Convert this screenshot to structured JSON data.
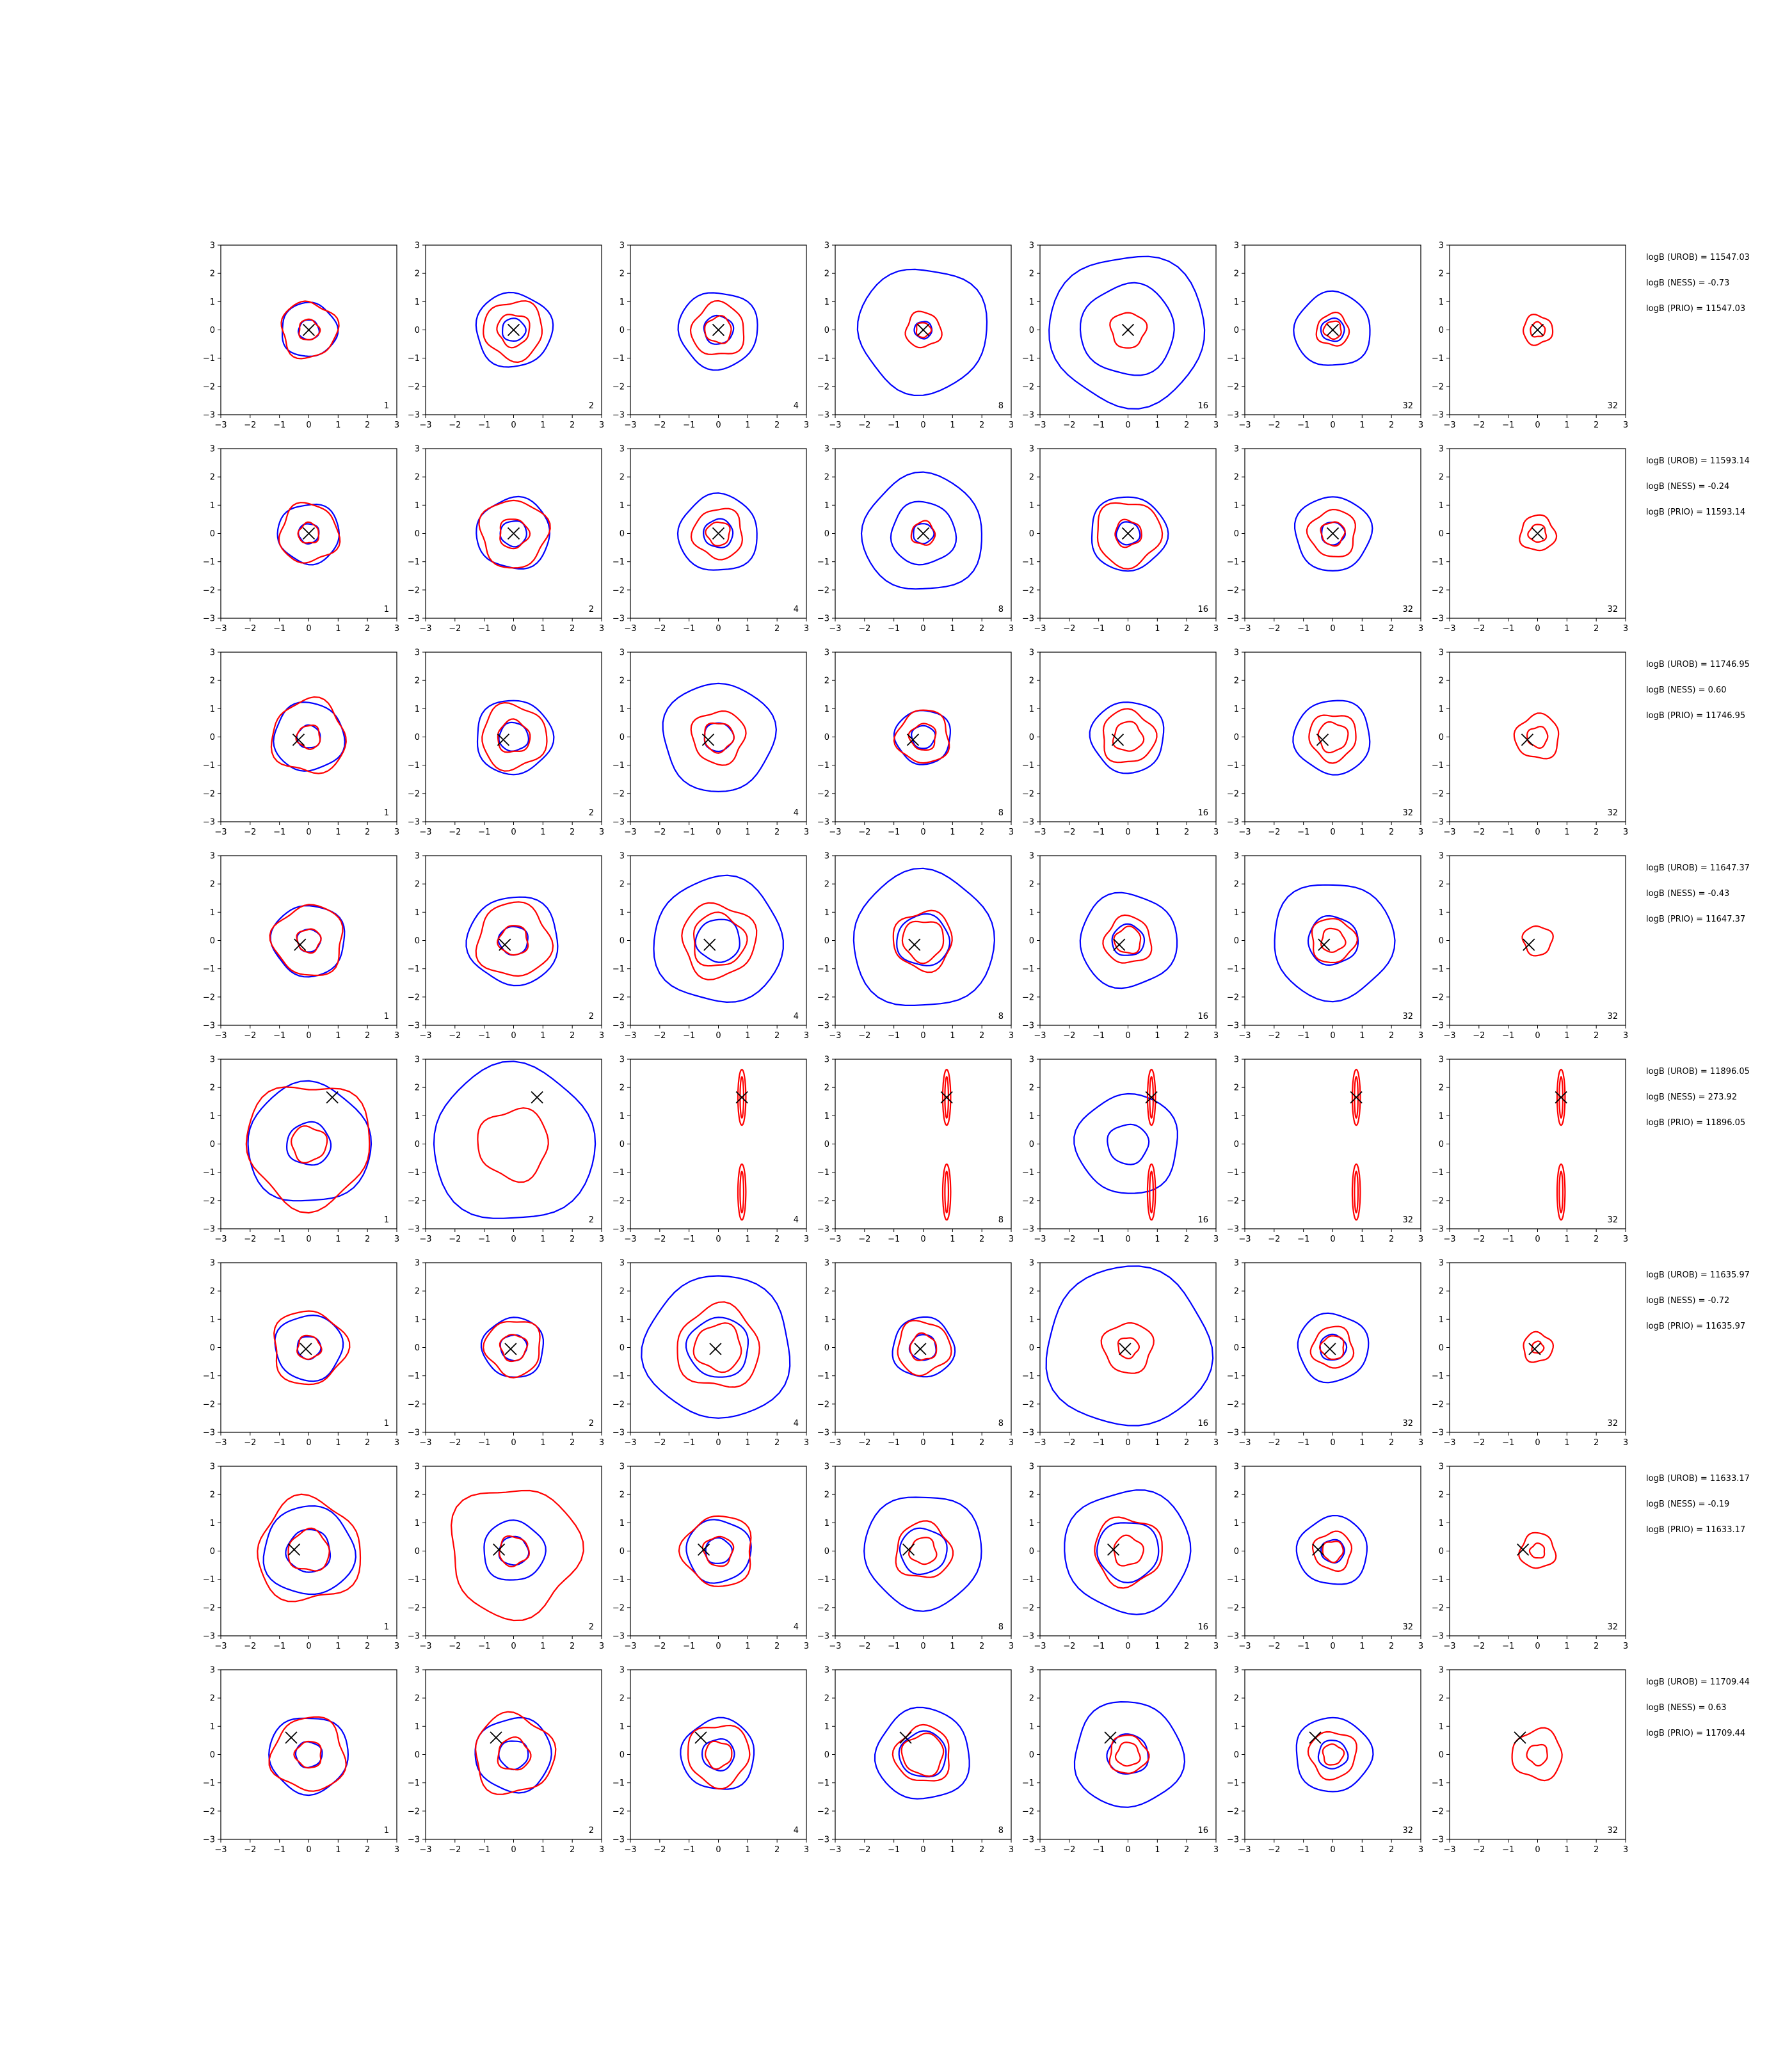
{
  "figure": {
    "axes_range": [
      -3,
      3
    ],
    "ticks": [
      "−3",
      "−2",
      "−1",
      "0",
      "1",
      "2",
      "3"
    ],
    "colors": {
      "blue": "#0000ff",
      "red": "#ff0000",
      "marker": "#000000"
    }
  },
  "chart_data": [
    {
      "type": "contour",
      "row": 1,
      "k_labels": [
        "1",
        "2",
        "4",
        "8",
        "16",
        "32",
        "32"
      ],
      "marker": [
        0,
        0
      ],
      "stats": [
        "logB (UROB) = 11547.03",
        "logB (NESS) = -0.73",
        "logB (PRIO) = 11547.03"
      ],
      "blue_radii": [
        [
          0.35,
          0.95
        ],
        [
          0.4,
          1.3
        ],
        [
          0.5,
          1.35
        ],
        [
          2.2,
          0.3
        ],
        [
          2.65,
          1.6
        ],
        [
          0.4,
          1.3
        ],
        []
      ],
      "red_radii": [
        [
          0.35,
          0.95
        ],
        [
          0.55,
          1.0
        ],
        [
          0.45,
          0.9
        ],
        [
          0.6,
          0.25
        ],
        [
          0.6
        ],
        [
          0.3,
          0.55
        ],
        [
          0.25,
          0.5
        ]
      ]
    },
    {
      "type": "contour",
      "row": 2,
      "k_labels": [
        "1",
        "2",
        "4",
        "8",
        "16",
        "32",
        "32"
      ],
      "marker": [
        0,
        0
      ],
      "stats": [
        "logB (UROB) = 11593.14",
        "logB (NESS) = -0.24",
        "logB (PRIO) = 11593.14"
      ],
      "blue_radii": [
        [
          0.35,
          1.05
        ],
        [
          0.45,
          1.25
        ],
        [
          0.5,
          1.35
        ],
        [
          2.05,
          1.1,
          0.35
        ],
        [
          0.4,
          1.3
        ],
        [
          0.4,
          1.3
        ],
        []
      ],
      "red_radii": [
        [
          0.35,
          1.0
        ],
        [
          0.5,
          1.15
        ],
        [
          0.4,
          0.85
        ],
        [
          0.4
        ],
        [
          0.45,
          1.1
        ],
        [
          0.4,
          0.8
        ],
        [
          0.3,
          0.6
        ]
      ]
    },
    {
      "type": "contour",
      "row": 3,
      "k_labels": [
        "1",
        "2",
        "4",
        "8",
        "16",
        "32",
        "32"
      ],
      "marker": [
        -0.35,
        -0.1
      ],
      "stats": [
        "logB (UROB) = 11746.95",
        "logB (NESS) = 0.60",
        "logB (PRIO) = 11746.95"
      ],
      "blue_radii": [
        [
          0.4,
          1.2
        ],
        [
          0.5,
          1.3
        ],
        [
          0.5,
          1.9
        ],
        [
          0.4,
          0.95
        ],
        [
          1.25
        ],
        [
          1.3
        ],
        []
      ],
      "red_radii": [
        [
          0.4,
          1.25
        ],
        [
          0.55,
          1.1
        ],
        [
          0.5,
          0.9
        ],
        [
          0.45,
          0.9
        ],
        [
          0.5,
          0.9
        ],
        [
          0.5,
          0.8
        ],
        [
          0.35,
          0.75
        ]
      ]
    },
    {
      "type": "contour",
      "row": 4,
      "k_labels": [
        "1",
        "2",
        "4",
        "8",
        "16",
        "32",
        "32"
      ],
      "marker": [
        -0.3,
        -0.15
      ],
      "stats": [
        "logB (UROB) = 11647.37",
        "logB (NESS) = -0.43",
        "logB (PRIO) = 11647.37"
      ],
      "blue_radii": [
        [
          0.4,
          1.25
        ],
        [
          0.5,
          1.55
        ],
        [
          0.75,
          2.2
        ],
        [
          0.9,
          2.4
        ],
        [
          0.55,
          1.65
        ],
        [
          0.85,
          2.05
        ],
        []
      ],
      "red_radii": [
        [
          0.4,
          1.2
        ],
        [
          0.5,
          1.25
        ],
        [
          0.9,
          1.25
        ],
        [
          0.7,
          1.0
        ],
        [
          0.45,
          0.8
        ],
        [
          0.4,
          0.75
        ],
        [
          0.5
        ]
      ]
    },
    {
      "type": "contour",
      "row": 5,
      "k_labels": [
        "1",
        "2",
        "4",
        "8",
        "16",
        "32",
        "32"
      ],
      "marker": [
        0.8,
        1.65
      ],
      "stats": [
        "logB (UROB) = 11896.05",
        "logB (NESS) = 273.92",
        "logB (PRIO) = 11896.05"
      ],
      "blue_radii": [
        [
          0.75,
          2.1
        ],
        [
          2.75
        ],
        [],
        [],
        [
          0.7,
          1.75
        ],
        [],
        []
      ],
      "red_radii": [
        [
          0.6,
          2.1
        ],
        [
          1.2
        ],
        [
          0.3
        ],
        [
          0.3
        ],
        [
          0.3
        ],
        [
          0.3
        ],
        [
          0.3
        ]
      ]
    },
    {
      "type": "contour",
      "row": 6,
      "k_labels": [
        "1",
        "2",
        "4",
        "8",
        "16",
        "32",
        "32"
      ],
      "marker": [
        -0.1,
        -0.05
      ],
      "stats": [
        "logB (UROB) = 11635.97",
        "logB (NESS) = -0.72",
        "logB (PRIO) = 11635.97"
      ],
      "blue_radii": [
        [
          0.4,
          1.15
        ],
        [
          0.45,
          1.05
        ],
        [
          1.05,
          2.5
        ],
        [
          0.45,
          1.05
        ],
        [
          2.8
        ],
        [
          0.45,
          1.2
        ],
        []
      ],
      "red_radii": [
        [
          0.4,
          1.25
        ],
        [
          0.45,
          0.95
        ],
        [
          0.8,
          1.4
        ],
        [
          0.45,
          0.9
        ],
        [
          0.35,
          0.85
        ],
        [
          0.4,
          0.7
        ],
        [
          0.2,
          0.5
        ]
      ]
    },
    {
      "type": "contour",
      "row": 7,
      "k_labels": [
        "1",
        "2",
        "4",
        "8",
        "16",
        "32",
        "32"
      ],
      "marker": [
        -0.5,
        0.05
      ],
      "stats": [
        "logB (UROB) = 11633.17",
        "logB (NESS) = -0.19",
        "logB (PRIO) = 11633.17"
      ],
      "blue_radii": [
        [
          0.75,
          1.55
        ],
        [
          0.5,
          1.05
        ],
        [
          0.45,
          1.1
        ],
        [
          0.8,
          2.0
        ],
        [
          1.05,
          2.15
        ],
        [
          0.4,
          1.2
        ],
        []
      ],
      "red_radii": [
        [
          0.7,
          1.75
        ],
        [
          0.5,
          2.2
        ],
        [
          0.5,
          1.2
        ],
        [
          0.45,
          0.95
        ],
        [
          0.5,
          1.15
        ],
        [
          0.35,
          0.65
        ],
        [
          0.25,
          0.6
        ]
      ]
    },
    {
      "type": "contour",
      "row": 8,
      "k_labels": [
        "1",
        "2",
        "4",
        "8",
        "16",
        "32",
        "32"
      ],
      "marker": [
        -0.6,
        0.6
      ],
      "stats": [
        "logB (UROB) = 11709.44",
        "logB (NESS) = 0.63",
        "logB (PRIO) = 11709.44"
      ],
      "blue_radii": [
        [
          0.45,
          1.35
        ],
        [
          0.5,
          1.3
        ],
        [
          0.55,
          1.25
        ],
        [
          0.8,
          1.6
        ],
        [
          0.7,
          1.85
        ],
        [
          0.5,
          1.3
        ],
        []
      ],
      "red_radii": [
        [
          0.45,
          1.25
        ],
        [
          0.55,
          1.35
        ],
        [
          0.45,
          1.05
        ],
        [
          0.7,
          0.95
        ],
        [
          0.4,
          0.65
        ],
        [
          0.35,
          0.8
        ],
        [
          0.35,
          0.85
        ]
      ]
    }
  ]
}
